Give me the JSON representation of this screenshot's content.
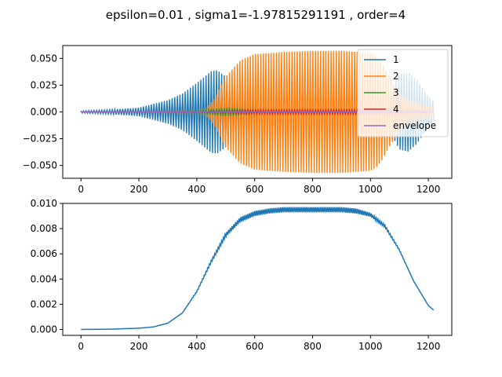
{
  "title": "epsilon=0.01 , sigma1=-1.97815291191 , order=4",
  "chart_data": [
    {
      "type": "line",
      "title": "",
      "xlabel": "",
      "ylabel": "",
      "xlim": [
        -63,
        1281
      ],
      "ylim": [
        -0.062,
        0.062
      ],
      "xticks": [
        0,
        200,
        400,
        600,
        800,
        1000,
        1200
      ],
      "yticks": [
        -0.05,
        -0.025,
        0.0,
        0.025,
        0.05
      ],
      "ytick_labels": [
        "−0.050",
        "−0.025",
        "0.000",
        "0.025",
        "0.050"
      ],
      "xtick_labels": [
        "0",
        "200",
        "400",
        "600",
        "800",
        "1000",
        "1200"
      ],
      "legend": {
        "position": "top-right",
        "entries": [
          "1",
          "2",
          "3",
          "4",
          "envelope"
        ]
      },
      "series": [
        {
          "name": "1",
          "color": "#1f77b4",
          "style": "oscillating band",
          "x": [
            0,
            100,
            200,
            300,
            350,
            400,
            450,
            470,
            500,
            540,
            580,
            620,
            1040,
            1060,
            1080,
            1100,
            1130,
            1160,
            1190,
            1220
          ],
          "amplitude": [
            0.001,
            0.002,
            0.004,
            0.011,
            0.017,
            0.027,
            0.038,
            0.039,
            0.033,
            0.02,
            0.01,
            0.002,
            0.002,
            0.012,
            0.025,
            0.035,
            0.037,
            0.03,
            0.018,
            0.009
          ]
        },
        {
          "name": "2",
          "color": "#ff7f0e",
          "style": "oscillating band",
          "x": [
            0,
            200,
            400,
            430,
            460,
            500,
            550,
            600,
            700,
            800,
            900,
            1000,
            1020,
            1040,
            1060,
            1080,
            1100,
            1130,
            1160,
            1190,
            1220
          ],
          "amplitude": [
            0.0005,
            0.0006,
            0.001,
            0.003,
            0.012,
            0.033,
            0.048,
            0.054,
            0.056,
            0.057,
            0.057,
            0.055,
            0.052,
            0.045,
            0.035,
            0.026,
            0.018,
            0.012,
            0.009,
            0.006,
            0.004
          ]
        },
        {
          "name": "3",
          "color": "#2ca02c",
          "style": "oscillating band",
          "x": [
            0,
            350,
            400,
            450,
            500,
            550,
            600,
            650,
            1220
          ],
          "amplitude": [
            0.0002,
            0.0004,
            0.001,
            0.0025,
            0.004,
            0.003,
            0.0012,
            0.0005,
            0.0003
          ]
        },
        {
          "name": "4",
          "color": "#d62728",
          "style": "oscillating band",
          "x": [
            0,
            400,
            500,
            580,
            700,
            1000,
            1100,
            1220
          ],
          "amplitude": [
            0.0002,
            0.0005,
            0.001,
            0.0017,
            0.0018,
            0.0018,
            0.0012,
            0.0006
          ]
        },
        {
          "name": "envelope",
          "color": "#9467bd",
          "style": "line",
          "x": [
            0,
            600,
            1220
          ],
          "y": [
            0.0,
            0.0,
            0.0
          ]
        }
      ]
    },
    {
      "type": "line",
      "title": "",
      "xlabel": "",
      "ylabel": "",
      "xlim": [
        -63,
        1281
      ],
      "ylim": [
        -0.00047,
        0.01
      ],
      "xticks": [
        0,
        200,
        400,
        600,
        800,
        1000,
        1200
      ],
      "yticks": [
        0.0,
        0.002,
        0.004,
        0.006,
        0.008,
        0.01
      ],
      "ytick_labels": [
        "0.000",
        "0.002",
        "0.004",
        "0.006",
        "0.008",
        "0.010"
      ],
      "xtick_labels": [
        "0",
        "200",
        "400",
        "600",
        "800",
        "1000",
        "1200"
      ],
      "series": [
        {
          "name": "",
          "color": "#1f77b4",
          "x": [
            0,
            100,
            200,
            250,
            300,
            350,
            400,
            450,
            500,
            550,
            600,
            650,
            700,
            800,
            900,
            950,
            1000,
            1050,
            1100,
            1150,
            1200,
            1220
          ],
          "y": [
            0.0,
            2e-05,
            0.0001,
            0.0002,
            0.0005,
            0.0013,
            0.003,
            0.0054,
            0.0075,
            0.0087,
            0.0092,
            0.0094,
            0.0095,
            0.0095,
            0.0095,
            0.0094,
            0.0091,
            0.0082,
            0.0063,
            0.0038,
            0.0019,
            0.0015
          ],
          "jitter": [
            0,
            0,
            0,
            0,
            0,
            0,
            5e-05,
            0.0001,
            0.00015,
            0.0002,
            0.0002,
            0.0002,
            0.0002,
            0.0002,
            0.0002,
            0.0002,
            0.00015,
            0.0001,
            5e-05,
            0,
            0,
            0
          ]
        }
      ]
    }
  ]
}
